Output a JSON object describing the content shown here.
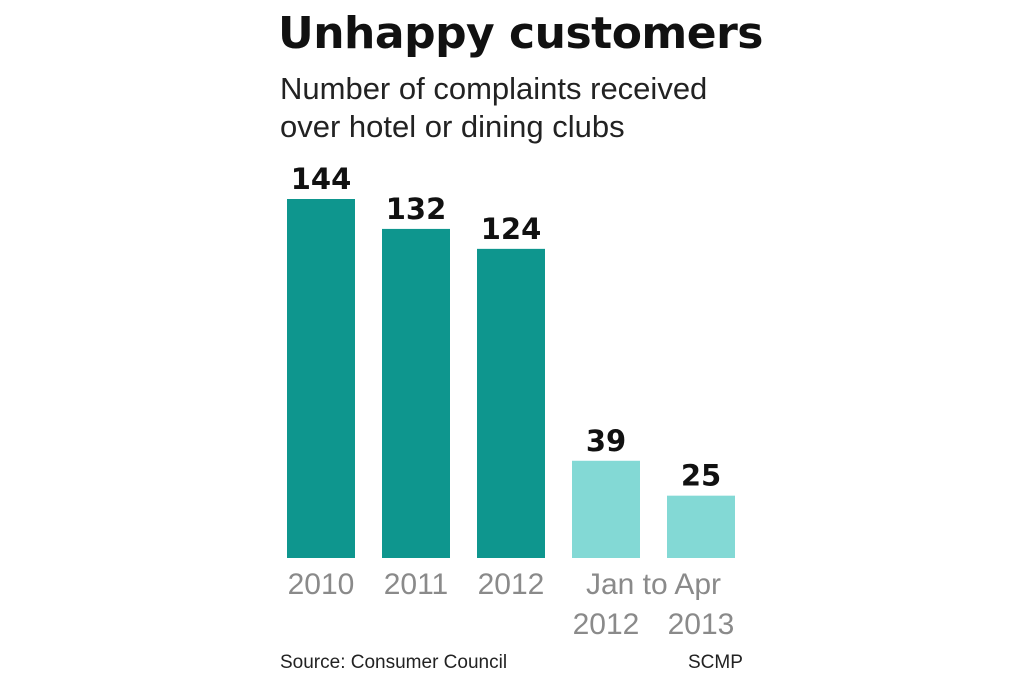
{
  "chart_data": {
    "type": "bar",
    "title": "Unhappy customers",
    "subtitle_lines": [
      "Number of complaints received",
      "over hotel or dining clubs"
    ],
    "categories": [
      "2010",
      "2011",
      "2012",
      "Jan to Apr 2012",
      "Jan to Apr 2013"
    ],
    "category_labels": [
      {
        "lines": [
          "2010"
        ]
      },
      {
        "lines": [
          "2011"
        ]
      },
      {
        "lines": [
          "2012"
        ]
      },
      {
        "lines": [
          "2012"
        ]
      },
      {
        "lines": [
          "2013"
        ]
      }
    ],
    "group_label": "Jan to Apr",
    "values": [
      144,
      132,
      124,
      39,
      25
    ],
    "ylim": [
      0,
      144
    ],
    "xlabel": "",
    "ylabel": "",
    "grid": false,
    "colors": {
      "full_year": "#0e968e",
      "partial_year": "#83d9d5",
      "value_label": "#111111",
      "tick_label": "#8a8a8a"
    },
    "source": "Source: Consumer Council",
    "credit": "SCMP"
  }
}
